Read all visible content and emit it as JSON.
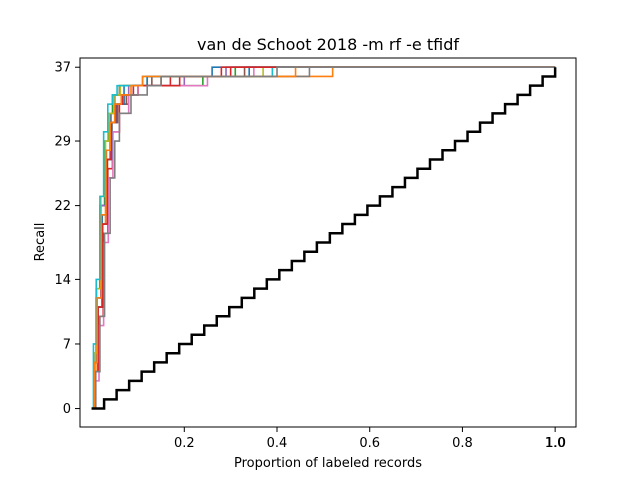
{
  "chart_data": {
    "type": "line",
    "title": "van de Schoot 2018 -m rf -e tfidf",
    "xlabel": "Proportion of labeled records",
    "ylabel": "Recall",
    "xlim": [
      -0.025,
      1.045
    ],
    "ylim": [
      -2,
      38
    ],
    "x_ticks": [
      0.2,
      0.4,
      0.6,
      0.8,
      1.0
    ],
    "x_tick_labels": [
      "0.2",
      "0.4",
      "0.6",
      "0.8",
      "1.0"
    ],
    "x_tick_labels_extra": [
      "1.0"
    ],
    "y_ticks": [
      0,
      7,
      14,
      22,
      29,
      37
    ],
    "y_tick_labels": [
      "0",
      "7",
      "14",
      "22",
      "29",
      "37"
    ],
    "grid": false,
    "legend": "none",
    "series": [
      {
        "color": "#1f77b4",
        "x": [
          0,
          0.005,
          0.01,
          0.02,
          0.03,
          0.04,
          0.05,
          0.07,
          0.1,
          0.12,
          0.2,
          0.26,
          1.0
        ],
        "y": [
          0,
          5,
          12,
          22,
          28,
          32,
          34,
          35,
          35,
          36,
          36,
          37,
          37
        ]
      },
      {
        "color": "#ff7f0e",
        "x": [
          0,
          0.006,
          0.012,
          0.022,
          0.03,
          0.04,
          0.055,
          0.07,
          0.1,
          0.15,
          0.3,
          0.52,
          1.0
        ],
        "y": [
          0,
          4,
          11,
          20,
          27,
          31,
          33,
          34,
          35,
          36,
          36,
          37,
          37
        ]
      },
      {
        "color": "#2ca02c",
        "x": [
          0,
          0.005,
          0.01,
          0.018,
          0.028,
          0.036,
          0.045,
          0.06,
          0.09,
          0.14,
          0.24,
          0.31,
          1.0
        ],
        "y": [
          0,
          6,
          13,
          22,
          29,
          32,
          34,
          35,
          35,
          35,
          36,
          37,
          37
        ]
      },
      {
        "color": "#d62728",
        "x": [
          0,
          0.008,
          0.015,
          0.025,
          0.035,
          0.045,
          0.06,
          0.08,
          0.1,
          0.17,
          0.21,
          0.3,
          1.0
        ],
        "y": [
          0,
          4,
          10,
          19,
          26,
          30,
          33,
          34,
          35,
          36,
          36,
          37,
          37
        ]
      },
      {
        "color": "#9467bd",
        "x": [
          0,
          0.005,
          0.01,
          0.02,
          0.03,
          0.04,
          0.05,
          0.065,
          0.08,
          0.1,
          0.2,
          0.29,
          1.0
        ],
        "y": [
          0,
          6,
          12,
          22,
          27,
          31,
          33,
          34,
          35,
          35,
          36,
          37,
          37
        ]
      },
      {
        "color": "#8c564b",
        "x": [
          0,
          0.007,
          0.014,
          0.024,
          0.034,
          0.044,
          0.056,
          0.075,
          0.1,
          0.13,
          0.2,
          0.33,
          1.0
        ],
        "y": [
          0,
          5,
          11,
          20,
          27,
          31,
          33,
          34,
          35,
          36,
          36,
          37,
          37
        ]
      },
      {
        "color": "#e377c2",
        "x": [
          0,
          0.009,
          0.016,
          0.026,
          0.036,
          0.046,
          0.06,
          0.08,
          0.1,
          0.11,
          0.25,
          0.35,
          1.0
        ],
        "y": [
          0,
          3,
          9,
          18,
          25,
          30,
          32,
          34,
          35,
          35,
          36,
          37,
          37
        ]
      },
      {
        "color": "#7f7f7f",
        "x": [
          0,
          0.006,
          0.012,
          0.022,
          0.032,
          0.042,
          0.05,
          0.06,
          0.1,
          0.15,
          0.3,
          0.47,
          1.0
        ],
        "y": [
          0,
          5,
          12,
          21,
          28,
          32,
          34,
          35,
          35,
          36,
          36,
          37,
          37
        ]
      },
      {
        "color": "#bcbd22",
        "x": [
          0,
          0.005,
          0.011,
          0.02,
          0.03,
          0.038,
          0.048,
          0.062,
          0.09,
          0.12,
          0.22,
          0.37,
          1.0
        ],
        "y": [
          0,
          6,
          13,
          23,
          29,
          32,
          34,
          35,
          35,
          36,
          36,
          37,
          37
        ]
      },
      {
        "color": "#17becf",
        "x": [
          0,
          0.004,
          0.01,
          0.018,
          0.026,
          0.035,
          0.045,
          0.055,
          0.08,
          0.11,
          0.23,
          0.39,
          1.0
        ],
        "y": [
          0,
          7,
          14,
          23,
          30,
          33,
          34,
          35,
          35,
          36,
          36,
          37,
          37
        ]
      },
      {
        "color": "#1f77b4",
        "x": [
          0,
          0.006,
          0.013,
          0.023,
          0.033,
          0.043,
          0.053,
          0.07,
          0.09,
          0.12,
          0.18,
          0.34,
          1.0
        ],
        "y": [
          0,
          5,
          11,
          21,
          27,
          31,
          33,
          34,
          35,
          36,
          36,
          37,
          37
        ]
      },
      {
        "color": "#d62728",
        "x": [
          0,
          0.007,
          0.014,
          0.024,
          0.034,
          0.042,
          0.052,
          0.066,
          0.09,
          0.11,
          0.19,
          0.28,
          1.0
        ],
        "y": [
          0,
          4,
          11,
          20,
          27,
          31,
          33,
          34,
          35,
          35,
          36,
          37,
          37
        ]
      },
      {
        "color": "#ff7f0e",
        "x": [
          0,
          0.006,
          0.012,
          0.021,
          0.031,
          0.04,
          0.05,
          0.064,
          0.085,
          0.11,
          0.22,
          0.44,
          1.0
        ],
        "y": [
          0,
          5,
          12,
          21,
          28,
          31,
          33,
          34,
          35,
          36,
          36,
          37,
          37
        ]
      },
      {
        "color": "#7f7f7f",
        "x": [
          0,
          0.009,
          0.018,
          0.028,
          0.04,
          0.05,
          0.06,
          0.085,
          0.12,
          0.15,
          0.25,
          0.4,
          1.0
        ],
        "y": [
          0,
          4,
          10,
          19,
          25,
          29,
          32,
          34,
          35,
          36,
          36,
          37,
          37
        ]
      },
      {
        "color": "#000000",
        "baseline": true,
        "x": [
          0,
          0.027,
          0.054,
          0.081,
          0.108,
          0.135,
          0.162,
          0.189,
          0.216,
          0.243,
          0.27,
          0.297,
          0.324,
          0.351,
          0.378,
          0.405,
          0.432,
          0.459,
          0.486,
          0.514,
          0.541,
          0.568,
          0.595,
          0.622,
          0.649,
          0.676,
          0.703,
          0.73,
          0.757,
          0.784,
          0.811,
          0.838,
          0.865,
          0.892,
          0.919,
          0.946,
          0.973,
          1.0
        ],
        "y": [
          0,
          1,
          2,
          3,
          4,
          5,
          6,
          7,
          8,
          9,
          10,
          11,
          12,
          13,
          14,
          15,
          16,
          17,
          18,
          19,
          20,
          21,
          22,
          23,
          24,
          25,
          26,
          27,
          28,
          29,
          30,
          31,
          32,
          33,
          34,
          35,
          36,
          37
        ]
      }
    ]
  }
}
